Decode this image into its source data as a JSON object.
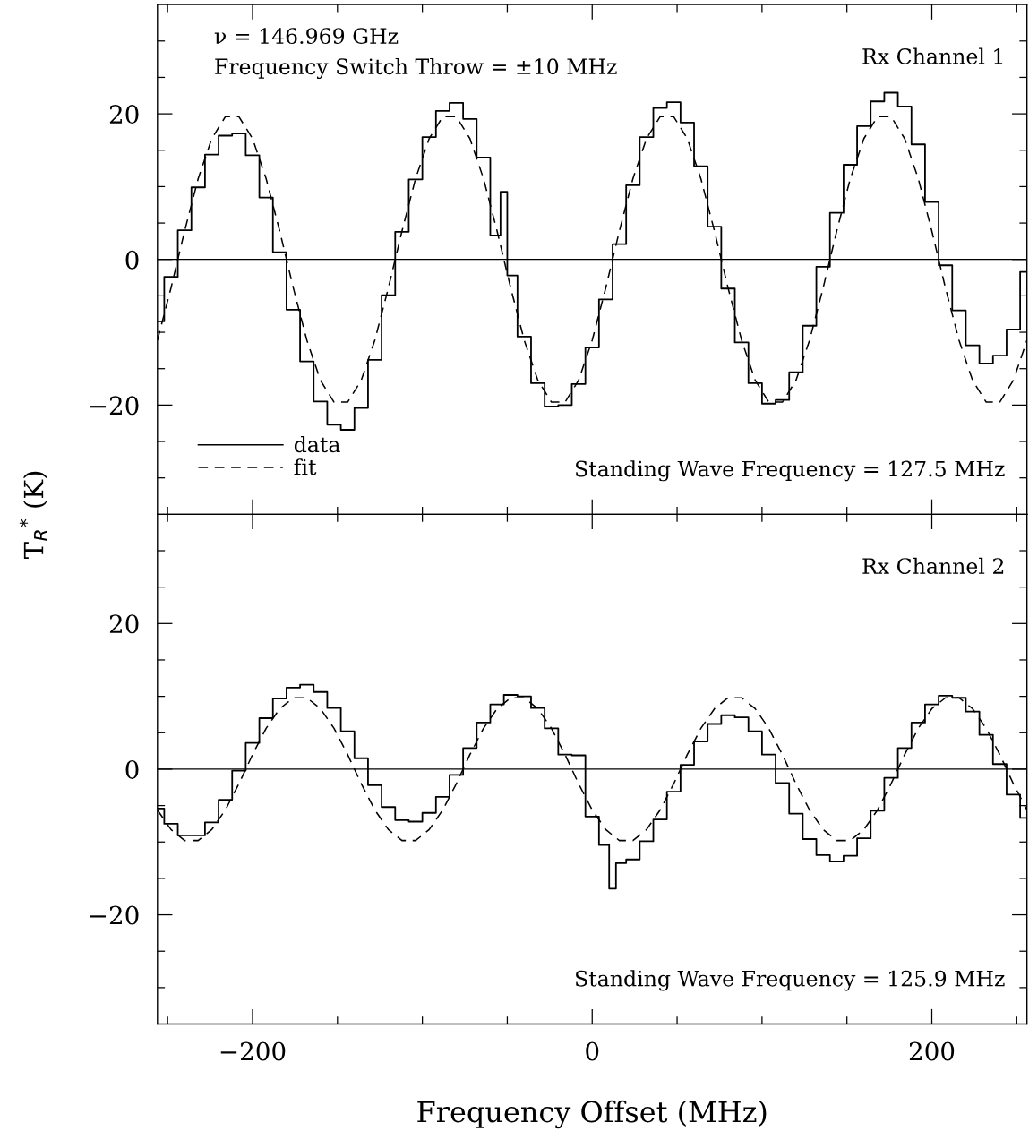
{
  "chart_data": [
    {
      "type": "step",
      "ylabel": "T$_{R}$$^{*}$ (K)",
      "annotations": [
        "ν = 146.969 GHz",
        "Frequency Switch Throw = ±10 MHz",
        "Rx Channel 1",
        "Standing Wave Frequency = 127.5 MHz"
      ],
      "xlim": [
        -256,
        256
      ],
      "ylim": [
        -35,
        35
      ],
      "xticks": [
        {
          "value": -250,
          "label": null
        },
        {
          "value": -200,
          "label": null
        },
        {
          "value": -150,
          "label": null
        },
        {
          "value": -100,
          "label": null
        },
        {
          "value": -50,
          "label": null
        },
        {
          "value": 0,
          "label": null
        },
        {
          "value": 50,
          "label": null
        },
        {
          "value": 100,
          "label": null
        },
        {
          "value": 150,
          "label": null
        },
        {
          "value": 200,
          "label": null
        },
        {
          "value": 250,
          "label": null
        }
      ],
      "yticks": [
        {
          "value": -30,
          "label": null
        },
        {
          "value": -25,
          "label": null
        },
        {
          "value": -20,
          "label": "−20"
        },
        {
          "value": -15,
          "label": null
        },
        {
          "value": -10,
          "label": null
        },
        {
          "value": -5,
          "label": null
        },
        {
          "value": 0,
          "label": "0"
        },
        {
          "value": 5,
          "label": null
        },
        {
          "value": 10,
          "label": null
        },
        {
          "value": 15,
          "label": null
        },
        {
          "value": 20,
          "label": "20"
        },
        {
          "value": 25,
          "label": null
        },
        {
          "value": 30,
          "label": null
        }
      ],
      "tick_labels": "y",
      "legend": "bottom left",
      "grid": false,
      "ref_lines": [
        {
          "axis": "y",
          "value": 0,
          "color": "#000000",
          "line_style": "solid"
        }
      ],
      "series": [
        {
          "name": "data",
          "color": "#000000",
          "line_style": "solid",
          "x": [
            -256,
            -248,
            -240,
            -232,
            -224,
            -216,
            -208,
            -200,
            -192,
            -184,
            -176,
            -168,
            -160,
            -152,
            -144,
            -136,
            -128,
            -120,
            -112,
            -104,
            -96,
            -88,
            -80,
            -72,
            -64,
            -56,
            -52,
            -48,
            -40,
            -32,
            -24,
            -16,
            -8,
            0,
            8,
            16,
            24,
            32,
            40,
            48,
            56,
            64,
            72,
            80,
            88,
            96,
            104,
            112,
            120,
            128,
            136,
            144,
            152,
            160,
            168,
            176,
            184,
            192,
            200,
            208,
            216,
            224,
            232,
            240,
            248,
            256
          ],
          "values": [
            -8.5,
            -2.4,
            4.0,
            9.9,
            14.4,
            17.0,
            17.3,
            14.3,
            8.5,
            1.0,
            -6.9,
            -14.0,
            -19.5,
            -22.7,
            -23.4,
            -20.4,
            -13.8,
            -4.9,
            3.8,
            11.0,
            16.8,
            20.4,
            21.5,
            19.3,
            14.0,
            3.3,
            9.3,
            -2.2,
            -10.6,
            -17.0,
            -20.2,
            -20.0,
            -17.1,
            -12.1,
            -5.5,
            2.1,
            10.2,
            16.8,
            20.8,
            21.6,
            18.8,
            12.8,
            4.5,
            -4.0,
            -11.4,
            -17.0,
            -19.8,
            -19.3,
            -15.5,
            -9.1,
            -1.0,
            6.4,
            13.0,
            18.3,
            21.7,
            22.9,
            21.0,
            15.8,
            7.9,
            -0.8,
            -7.0,
            -11.8,
            -14.3,
            -13.2,
            -9.6,
            -1.7
          ]
        },
        {
          "name": "fit",
          "type": "line",
          "color": "#000000",
          "line_style": "dashed",
          "x": [
            -256,
            -248,
            -240,
            -232,
            -224,
            -216,
            -208,
            -200,
            -192,
            -184,
            -176,
            -168,
            -160,
            -152,
            -144,
            -136,
            -128,
            -120,
            -112,
            -104,
            -96,
            -88,
            -80,
            -72,
            -64,
            -56,
            -48,
            -40,
            -32,
            -24,
            -16,
            -8,
            0,
            8,
            16,
            24,
            32,
            40,
            48,
            56,
            64,
            72,
            80,
            88,
            96,
            104,
            112,
            120,
            128,
            136,
            144,
            152,
            160,
            168,
            176,
            184,
            192,
            200,
            208,
            216,
            224,
            232,
            240,
            248,
            256
          ],
          "values": [
            -11.1,
            -3.9,
            3.9,
            11.1,
            16.6,
            19.6,
            19.6,
            16.6,
            11.1,
            3.9,
            -3.9,
            -11.1,
            -16.6,
            -19.6,
            -19.6,
            -16.6,
            -11.1,
            -3.9,
            3.9,
            11.1,
            16.6,
            19.6,
            19.6,
            16.6,
            11.1,
            3.9,
            -3.9,
            -11.1,
            -16.6,
            -19.6,
            -19.6,
            -16.6,
            -11.1,
            -3.9,
            3.9,
            11.1,
            16.6,
            19.6,
            19.6,
            16.6,
            11.1,
            3.9,
            -3.9,
            -11.1,
            -16.6,
            -19.6,
            -19.6,
            -16.6,
            -11.1,
            -3.9,
            3.9,
            11.1,
            16.6,
            19.6,
            19.6,
            16.6,
            11.1,
            3.9,
            -3.9,
            -11.1,
            -16.6,
            -19.6,
            -19.6,
            -16.6,
            -11.1
          ]
        }
      ]
    },
    {
      "type": "step",
      "xlabel": "Frequency Offset (MHz)",
      "annotations": [
        "Rx Channel 2",
        "Standing Wave Frequency = 125.9 MHz"
      ],
      "xlim": [
        -256,
        256
      ],
      "ylim": [
        -35,
        35
      ],
      "xticks": [
        {
          "value": -250,
          "label": null
        },
        {
          "value": -200,
          "label": "−200"
        },
        {
          "value": -150,
          "label": null
        },
        {
          "value": -100,
          "label": null
        },
        {
          "value": -50,
          "label": null
        },
        {
          "value": 0,
          "label": "0"
        },
        {
          "value": 50,
          "label": null
        },
        {
          "value": 100,
          "label": null
        },
        {
          "value": 150,
          "label": null
        },
        {
          "value": 200,
          "label": "200"
        },
        {
          "value": 250,
          "label": null
        }
      ],
      "yticks": [
        {
          "value": -30,
          "label": null
        },
        {
          "value": -25,
          "label": null
        },
        {
          "value": -20,
          "label": "−20"
        },
        {
          "value": -15,
          "label": null
        },
        {
          "value": -10,
          "label": null
        },
        {
          "value": -5,
          "label": null
        },
        {
          "value": 0,
          "label": "0"
        },
        {
          "value": 5,
          "label": null
        },
        {
          "value": 10,
          "label": null
        },
        {
          "value": 15,
          "label": null
        },
        {
          "value": 20,
          "label": "20"
        },
        {
          "value": 25,
          "label": null
        },
        {
          "value": 30,
          "label": null
        }
      ],
      "grid": false,
      "ref_lines": [
        {
          "axis": "y",
          "value": 0,
          "color": "#000000",
          "line_style": "solid"
        }
      ],
      "series": [
        {
          "color": "#000000",
          "line_style": "solid",
          "x": [
            -256,
            -248,
            -240,
            -232,
            -224,
            -216,
            -208,
            -200,
            -192,
            -184,
            -176,
            -168,
            -160,
            -152,
            -144,
            -136,
            -128,
            -120,
            -112,
            -104,
            -96,
            -88,
            -80,
            -72,
            -64,
            -56,
            -48,
            -40,
            -32,
            -24,
            -16,
            -8,
            0,
            8,
            12,
            16,
            24,
            32,
            40,
            48,
            56,
            64,
            72,
            80,
            88,
            96,
            104,
            112,
            120,
            128,
            136,
            144,
            152,
            160,
            168,
            176,
            184,
            192,
            200,
            208,
            216,
            224,
            232,
            240,
            248,
            256
          ],
          "values": [
            -5.4,
            -7.5,
            -9.1,
            -9.1,
            -7.3,
            -4.2,
            -0.2,
            3.6,
            7.0,
            9.7,
            11.2,
            11.6,
            10.6,
            8.4,
            5.2,
            1.5,
            -2.2,
            -5.2,
            -7.0,
            -7.2,
            -6.0,
            -3.8,
            -0.8,
            2.9,
            6.4,
            8.9,
            10.2,
            10.0,
            8.4,
            5.6,
            2.0,
            1.9,
            -6.5,
            -10.4,
            -16.4,
            -12.9,
            -12.4,
            -9.9,
            -6.9,
            -3.1,
            0.6,
            3.8,
            6.2,
            7.4,
            7.1,
            5.2,
            2.0,
            -1.9,
            -6.1,
            -9.6,
            -11.8,
            -12.7,
            -11.9,
            -9.5,
            -5.7,
            -1.2,
            2.9,
            6.4,
            8.9,
            10.1,
            9.8,
            7.9,
            4.7,
            0.7,
            -3.5,
            -6.7
          ]
        },
        {
          "type": "line",
          "color": "#000000",
          "line_style": "dashed",
          "x": [
            -256,
            -248,
            -240,
            -232,
            -224,
            -216,
            -208,
            -200,
            -192,
            -184,
            -176,
            -168,
            -160,
            -152,
            -144,
            -136,
            -128,
            -120,
            -112,
            -104,
            -96,
            -88,
            -80,
            -72,
            -64,
            -56,
            -48,
            -40,
            -32,
            -24,
            -16,
            -8,
            0,
            8,
            16,
            24,
            32,
            40,
            48,
            56,
            64,
            72,
            80,
            88,
            96,
            104,
            112,
            120,
            128,
            136,
            144,
            152,
            160,
            168,
            176,
            184,
            192,
            200,
            208,
            216,
            224,
            232,
            240,
            248,
            256
          ],
          "values": [
            -5.6,
            -8.3,
            -9.8,
            -9.8,
            -8.3,
            -5.6,
            -2.0,
            2.0,
            5.6,
            8.3,
            9.8,
            9.8,
            8.3,
            5.6,
            2.0,
            -2.0,
            -5.6,
            -8.3,
            -9.8,
            -9.8,
            -8.3,
            -5.6,
            -2.0,
            2.0,
            5.6,
            8.3,
            9.8,
            9.8,
            8.3,
            5.6,
            2.0,
            -2.0,
            -5.6,
            -8.3,
            -9.8,
            -9.8,
            -8.3,
            -5.6,
            -2.0,
            2.0,
            5.6,
            8.3,
            9.8,
            9.8,
            8.3,
            5.6,
            2.0,
            -2.0,
            -5.6,
            -8.3,
            -9.8,
            -9.8,
            -8.3,
            -5.6,
            -2.0,
            2.0,
            5.6,
            8.3,
            9.8,
            9.8,
            8.3,
            5.6,
            2.0,
            -2.0,
            -5.6
          ]
        }
      ]
    }
  ]
}
